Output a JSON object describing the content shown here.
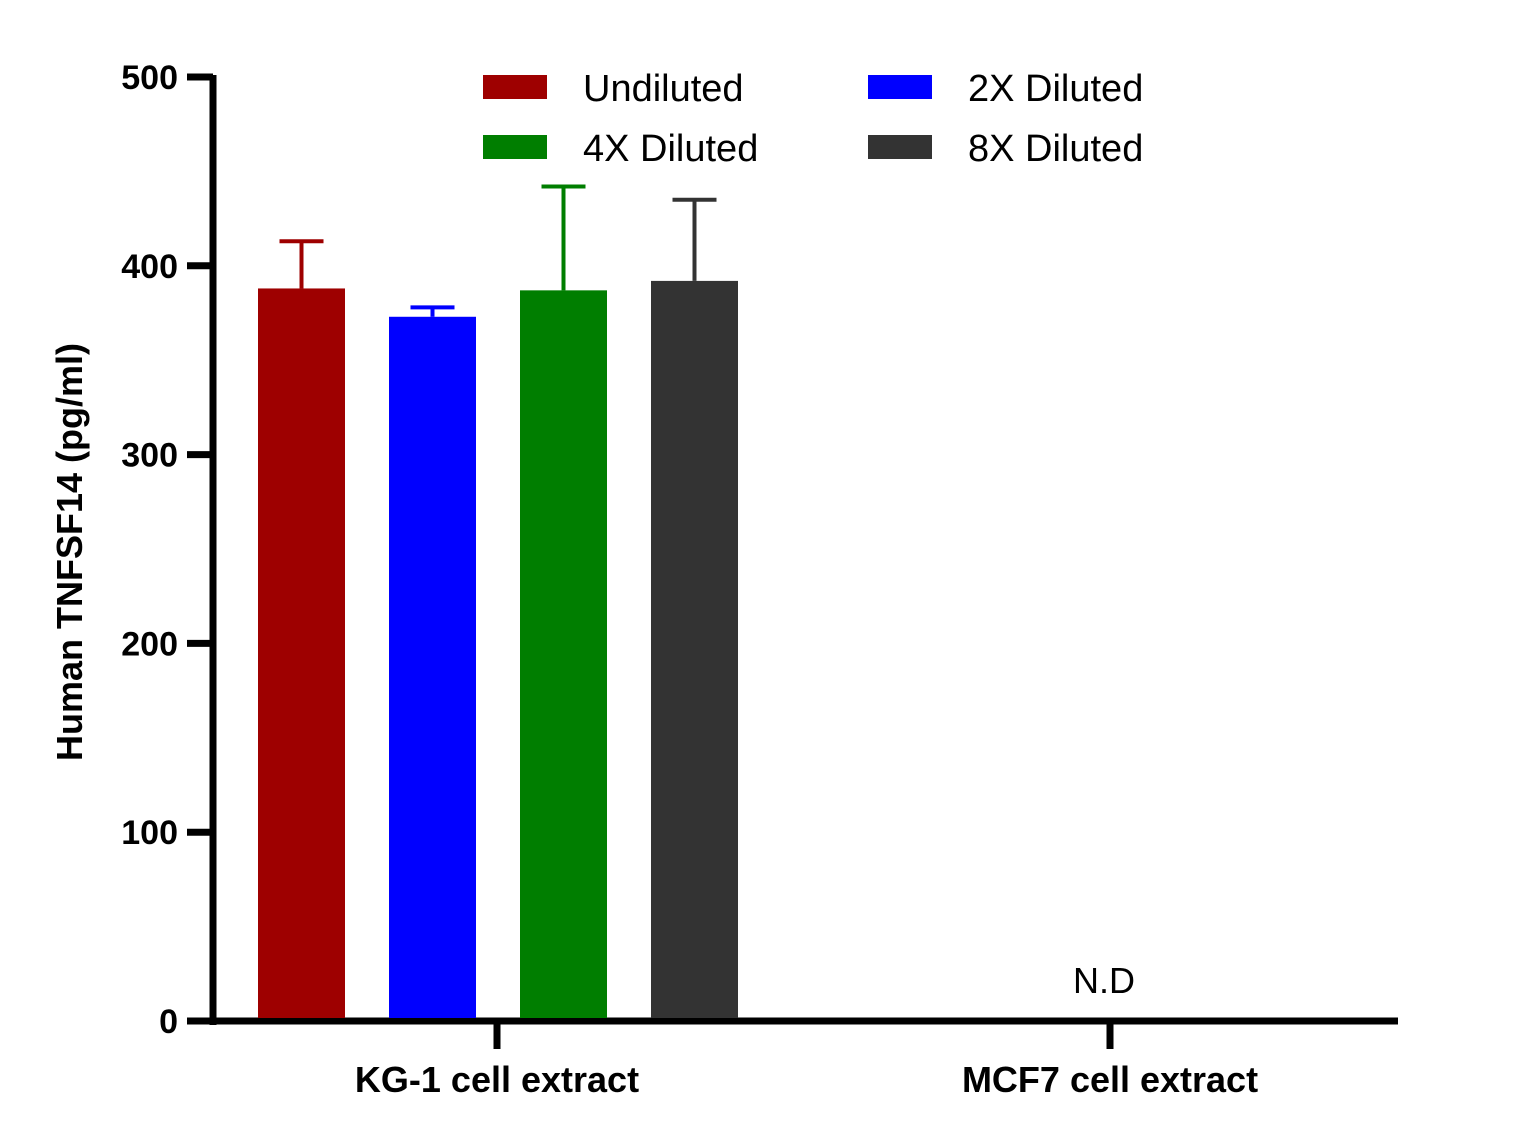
{
  "chart_data": {
    "type": "bar",
    "title": "",
    "xlabel": "",
    "ylabel": "Human TNFSF14 (pg/ml)",
    "ylim": [
      0,
      500
    ],
    "yticks": [
      0,
      100,
      200,
      300,
      400,
      500
    ],
    "grid": false,
    "legend_position": "top",
    "categories": [
      "KG-1 cell extract",
      "MCF7 cell extract"
    ],
    "series": [
      {
        "name": "Undiluted",
        "color": "#9e0000",
        "values": [
          388,
          null
        ],
        "error": [
          25,
          null
        ]
      },
      {
        "name": "2X Diluted",
        "color": "#0000ff",
        "values": [
          373,
          null
        ],
        "error": [
          5,
          null
        ]
      },
      {
        "name": "4X Diluted",
        "color": "#007e00",
        "values": [
          387,
          null
        ],
        "error": [
          55,
          null
        ]
      },
      {
        "name": "8X Diluted",
        "color": "#333333",
        "values": [
          392,
          null
        ],
        "error": [
          43,
          null
        ]
      }
    ],
    "annotations": [
      {
        "category": "MCF7 cell extract",
        "text": "N.D"
      }
    ]
  }
}
